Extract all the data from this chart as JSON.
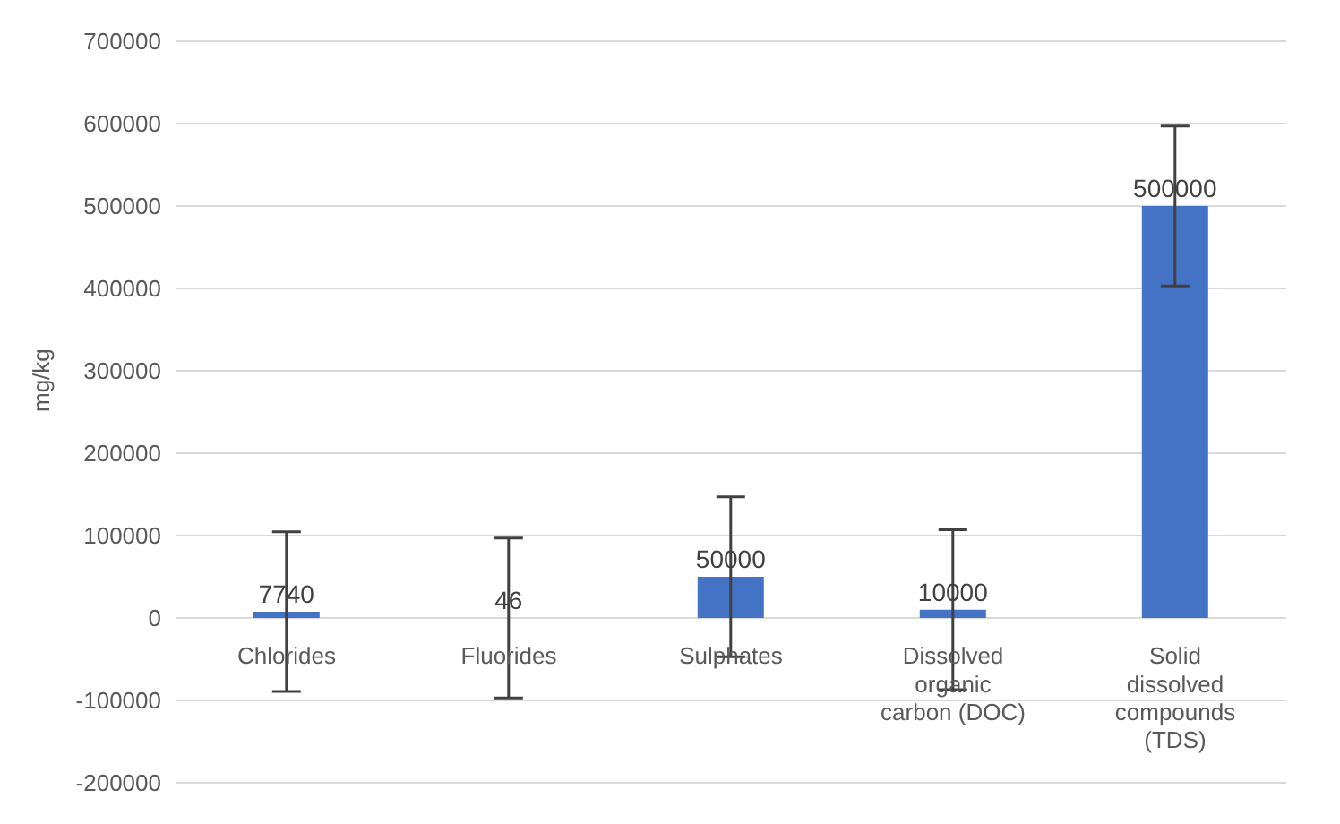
{
  "chart_data": {
    "type": "bar",
    "categories": [
      "Chlorides",
      "Fluorides",
      "Sulphates",
      "Dissolved organic carbon (DOC)",
      "Solid dissolved compounds (TDS)"
    ],
    "values": [
      7740,
      46,
      50000,
      10000,
      500000
    ],
    "errors": [
      97000,
      97000,
      97000,
      97000,
      97000
    ],
    "color": "#4472c4",
    "ylabel": "mg/kg",
    "ylim": [
      -200000,
      700000
    ],
    "yticks": [
      -200000,
      -100000,
      0,
      100000,
      200000,
      300000,
      400000,
      500000,
      600000,
      700000
    ],
    "grid": "y",
    "data_labels": true
  }
}
